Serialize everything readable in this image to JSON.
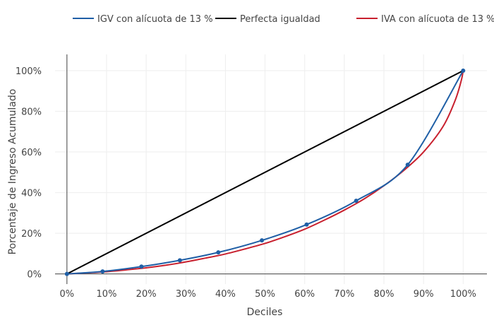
{
  "chart_data": {
    "type": "line",
    "xlabel": "Deciles",
    "ylabel": "Porcentaje de Ingreso Acumulado",
    "xlim": [
      -3,
      106
    ],
    "ylim": [
      -5,
      108
    ],
    "x_ticks": [
      0,
      10,
      20,
      30,
      40,
      50,
      60,
      70,
      80,
      90,
      100
    ],
    "x_tick_labels": [
      "0%",
      "10%",
      "20%",
      "30%",
      "40%",
      "50%",
      "60%",
      "70%",
      "80%",
      "90%",
      "100%"
    ],
    "y_ticks": [
      0,
      20,
      40,
      60,
      80,
      100
    ],
    "y_tick_labels": [
      "0%",
      "20%",
      "40%",
      "60%",
      "80%",
      "100%"
    ],
    "grid": true,
    "legend_position": "top",
    "series": [
      {
        "name": "IGV con alícuota de 13 %",
        "color": "#1f5fa6",
        "markers": true,
        "points": [
          [
            0,
            0
          ],
          [
            9,
            1.2
          ],
          [
            18.8,
            3.6
          ],
          [
            28.5,
            6.7
          ],
          [
            38.2,
            10.6
          ],
          [
            49.2,
            16.5
          ],
          [
            60.5,
            24.3
          ],
          [
            73,
            36
          ],
          [
            86,
            53.7
          ],
          [
            100,
            100
          ]
        ]
      },
      {
        "name": "Perfecta igualdad",
        "color": "#000000",
        "markers": false,
        "points": [
          [
            0,
            0
          ],
          [
            100,
            100
          ]
        ]
      },
      {
        "name": "IVA con alícuota de 13 %",
        "color": "#c8202e",
        "markers": false,
        "points": [
          [
            0,
            0
          ],
          [
            5,
            0.5
          ],
          [
            10,
            1.1
          ],
          [
            15,
            2
          ],
          [
            20,
            3
          ],
          [
            25,
            4.3
          ],
          [
            30,
            5.9
          ],
          [
            35,
            7.8
          ],
          [
            40,
            9.8
          ],
          [
            45,
            12.3
          ],
          [
            50,
            15
          ],
          [
            55,
            18.3
          ],
          [
            60,
            22
          ],
          [
            65,
            26.5
          ],
          [
            70,
            31.4
          ],
          [
            75,
            36.9
          ],
          [
            80,
            43.4
          ],
          [
            85,
            50.9
          ],
          [
            90,
            60
          ],
          [
            95,
            72.8
          ],
          [
            98,
            85.5
          ],
          [
            99.5,
            95
          ],
          [
            100,
            100
          ]
        ]
      }
    ]
  }
}
